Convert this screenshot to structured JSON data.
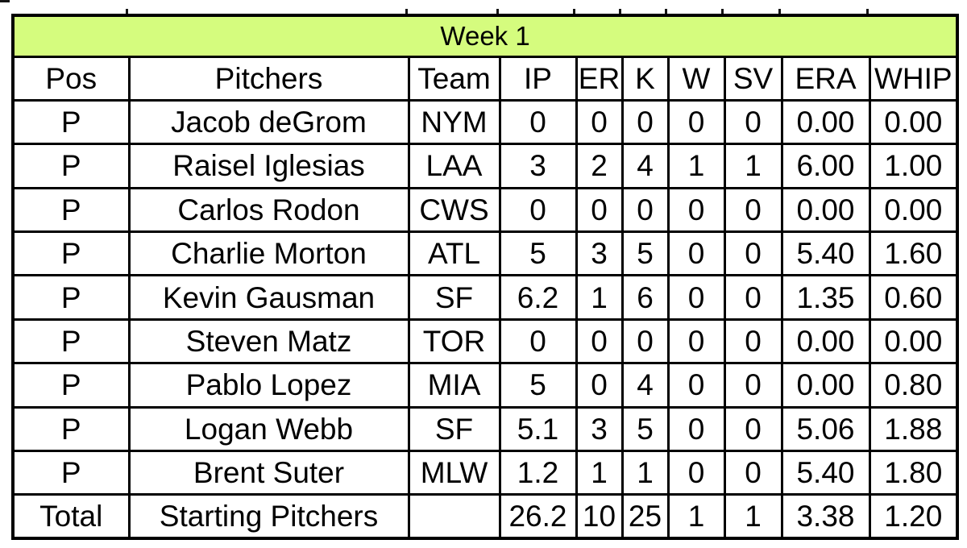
{
  "chart_data": {
    "type": "table",
    "title": "Week 1",
    "columns": [
      "Pos",
      "Pitchers",
      "Team",
      "IP",
      "ER",
      "K",
      "W",
      "SV",
      "ERA",
      "WHIP"
    ],
    "rows": [
      [
        "P",
        "Jacob deGrom",
        "NYM",
        "0",
        "0",
        "0",
        "0",
        "0",
        "0.00",
        "0.00"
      ],
      [
        "P",
        "Raisel Iglesias",
        "LAA",
        "3",
        "2",
        "4",
        "1",
        "1",
        "6.00",
        "1.00"
      ],
      [
        "P",
        "Carlos Rodon",
        "CWS",
        "0",
        "0",
        "0",
        "0",
        "0",
        "0.00",
        "0.00"
      ],
      [
        "P",
        "Charlie Morton",
        "ATL",
        "5",
        "3",
        "5",
        "0",
        "0",
        "5.40",
        "1.60"
      ],
      [
        "P",
        "Kevin Gausman",
        "SF",
        "6.2",
        "1",
        "6",
        "0",
        "0",
        "1.35",
        "0.60"
      ],
      [
        "P",
        "Steven Matz",
        "TOR",
        "0",
        "0",
        "0",
        "0",
        "0",
        "0.00",
        "0.00"
      ],
      [
        "P",
        "Pablo Lopez",
        "MIA",
        "5",
        "0",
        "4",
        "0",
        "0",
        "0.00",
        "0.80"
      ],
      [
        "P",
        "Logan Webb",
        "SF",
        "5.1",
        "3",
        "5",
        "0",
        "0",
        "5.06",
        "1.88"
      ],
      [
        "P",
        "Brent Suter",
        "MLW",
        "1.2",
        "1",
        "1",
        "0",
        "0",
        "5.40",
        "1.80"
      ]
    ],
    "total_row": [
      "Total",
      "Starting Pitchers",
      "",
      "26.2",
      "10",
      "25",
      "1",
      "1",
      "3.38",
      "1.20"
    ]
  },
  "styles": {
    "title_bg": "#d5fc7e",
    "border_color": "#000000",
    "text_color": "#000000"
  }
}
